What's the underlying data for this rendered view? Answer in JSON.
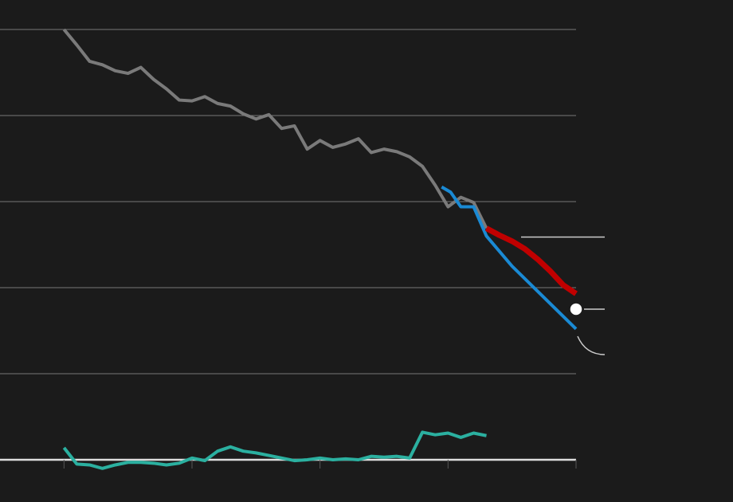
{
  "chart_data": {
    "type": "line",
    "x": [
      0,
      1,
      2,
      3,
      4,
      5,
      6,
      7,
      8,
      9,
      10,
      11,
      12,
      13,
      14,
      15,
      16,
      17,
      18,
      19,
      20,
      21,
      22,
      23,
      24,
      25,
      26,
      27,
      28,
      29,
      30,
      31,
      32,
      33
    ],
    "xlim": [
      -5,
      40
    ],
    "xticks": [
      0,
      10,
      20,
      30,
      40
    ],
    "ylim": [
      0,
      50
    ],
    "yticks": [
      0,
      10,
      20,
      30,
      40,
      50
    ],
    "grid": true,
    "series": [
      {
        "color": "#7a7a7a",
        "values": [
          50,
          48.2,
          46.3,
          45.9,
          45.2,
          44.9,
          45.6,
          44.2,
          43.1,
          41.8,
          41.7,
          42.2,
          41.4,
          41.1,
          40.2,
          39.6,
          40.1,
          38.5,
          38.8,
          36.1,
          37.1,
          36.3,
          36.7,
          37.3,
          35.7,
          36.1,
          35.8,
          35.2,
          34.1,
          31.9,
          29.4,
          30.5,
          29.9,
          26.9
        ]
      },
      {
        "color": "#1a8ad4",
        "x": [
          29.5,
          30.2,
          31,
          32,
          33,
          35,
          40
        ],
        "values": [
          31.7,
          31.1,
          29.4,
          29.4,
          26.0,
          22.5,
          15.2
        ]
      },
      {
        "color": "#c00000",
        "x": [
          33,
          34,
          35,
          36,
          37,
          38,
          39,
          40
        ],
        "values": [
          26.9,
          26.1,
          25.4,
          24.5,
          23.3,
          21.9,
          20.3,
          19.3
        ]
      },
      {
        "color": "#2bb0a0",
        "values": [
          1.4,
          -0.5,
          -0.6,
          -1.0,
          -0.6,
          -0.3,
          -0.3,
          -0.4,
          -0.6,
          -0.4,
          0.2,
          -0.1,
          1.0,
          1.5,
          1.0,
          0.8,
          0.5,
          0.2,
          -0.1,
          0,
          0.2,
          0,
          0.1,
          0,
          0.4,
          0.3,
          0.4,
          0.2,
          3.2,
          2.9,
          3.1,
          2.6,
          3.1,
          2.8
        ]
      }
    ],
    "marker": {
      "x": 40,
      "value": 17.5,
      "color": "#ffffff"
    }
  }
}
